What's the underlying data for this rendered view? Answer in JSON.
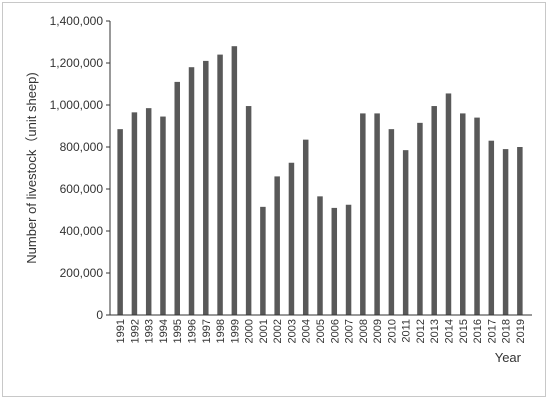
{
  "chart_data": {
    "type": "bar",
    "title": "",
    "xlabel": "Year",
    "ylabel": "Number of livestock（unit sheep)",
    "ylim": [
      0,
      1400000
    ],
    "yticks": [
      0,
      200000,
      400000,
      600000,
      800000,
      1000000,
      1200000,
      1400000
    ],
    "ytick_labels": [
      "0",
      "200,000",
      "400,000",
      "600,000",
      "800,000",
      "1,000,000",
      "1,200,000",
      "1,400,000"
    ],
    "grid": false,
    "bar_color": "#595959",
    "categories": [
      "1991",
      "1992",
      "1993",
      "1994",
      "1995",
      "1996",
      "1997",
      "1998",
      "1999",
      "2000",
      "2001",
      "2002",
      "2003",
      "2004",
      "2005",
      "2006",
      "2007",
      "2008",
      "2009",
      "2010",
      "2011",
      "2012",
      "2013",
      "2014",
      "2015",
      "2016",
      "2017",
      "2018",
      "2019"
    ],
    "values": [
      885000,
      965000,
      985000,
      945000,
      1110000,
      1180000,
      1210000,
      1240000,
      1280000,
      995000,
      515000,
      660000,
      725000,
      835000,
      565000,
      510000,
      525000,
      960000,
      960000,
      885000,
      785000,
      915000,
      995000,
      1055000,
      960000,
      940000,
      830000,
      790000,
      800000
    ]
  }
}
